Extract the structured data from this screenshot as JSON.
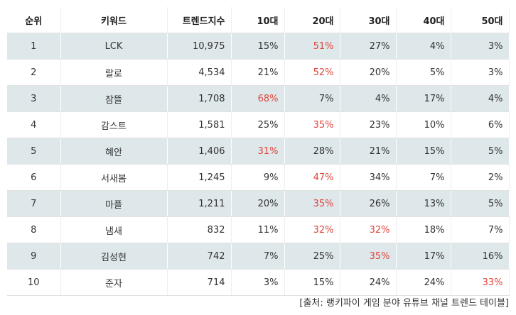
{
  "table": {
    "header": [
      "순위",
      "키워드",
      "트렌드지수",
      "10대",
      "20대",
      "30대",
      "40대",
      "50대"
    ],
    "rows": [
      [
        "1",
        "LCK",
        "10,975",
        "15%",
        "51%",
        "27%",
        "4%",
        "3%"
      ],
      [
        "2",
        "랄로",
        "4,534",
        "21%",
        "52%",
        "20%",
        "5%",
        "3%"
      ],
      [
        "3",
        "잠뜰",
        "1,708",
        "68%",
        "7%",
        "4%",
        "17%",
        "4%"
      ],
      [
        "4",
        "감스트",
        "1,581",
        "25%",
        "35%",
        "23%",
        "10%",
        "6%"
      ],
      [
        "5",
        "혜안",
        "1,406",
        "31%",
        "28%",
        "21%",
        "15%",
        "5%"
      ],
      [
        "6",
        "서새봄",
        "1,245",
        "9%",
        "47%",
        "34%",
        "7%",
        "2%"
      ],
      [
        "7",
        "마플",
        "1,211",
        "20%",
        "35%",
        "26%",
        "13%",
        "5%"
      ],
      [
        "8",
        "냄새",
        "832",
        "11%",
        "32%",
        "32%",
        "18%",
        "7%"
      ],
      [
        "9",
        "김성현",
        "742",
        "7%",
        "25%",
        "35%",
        "17%",
        "16%"
      ],
      [
        "10",
        "준자",
        "714",
        "3%",
        "15%",
        "24%",
        "24%",
        "33%"
      ]
    ]
  },
  "source": "[출처: 랭키파이 게임 분야 유튜브 채널 트렌드 테이블]"
}
